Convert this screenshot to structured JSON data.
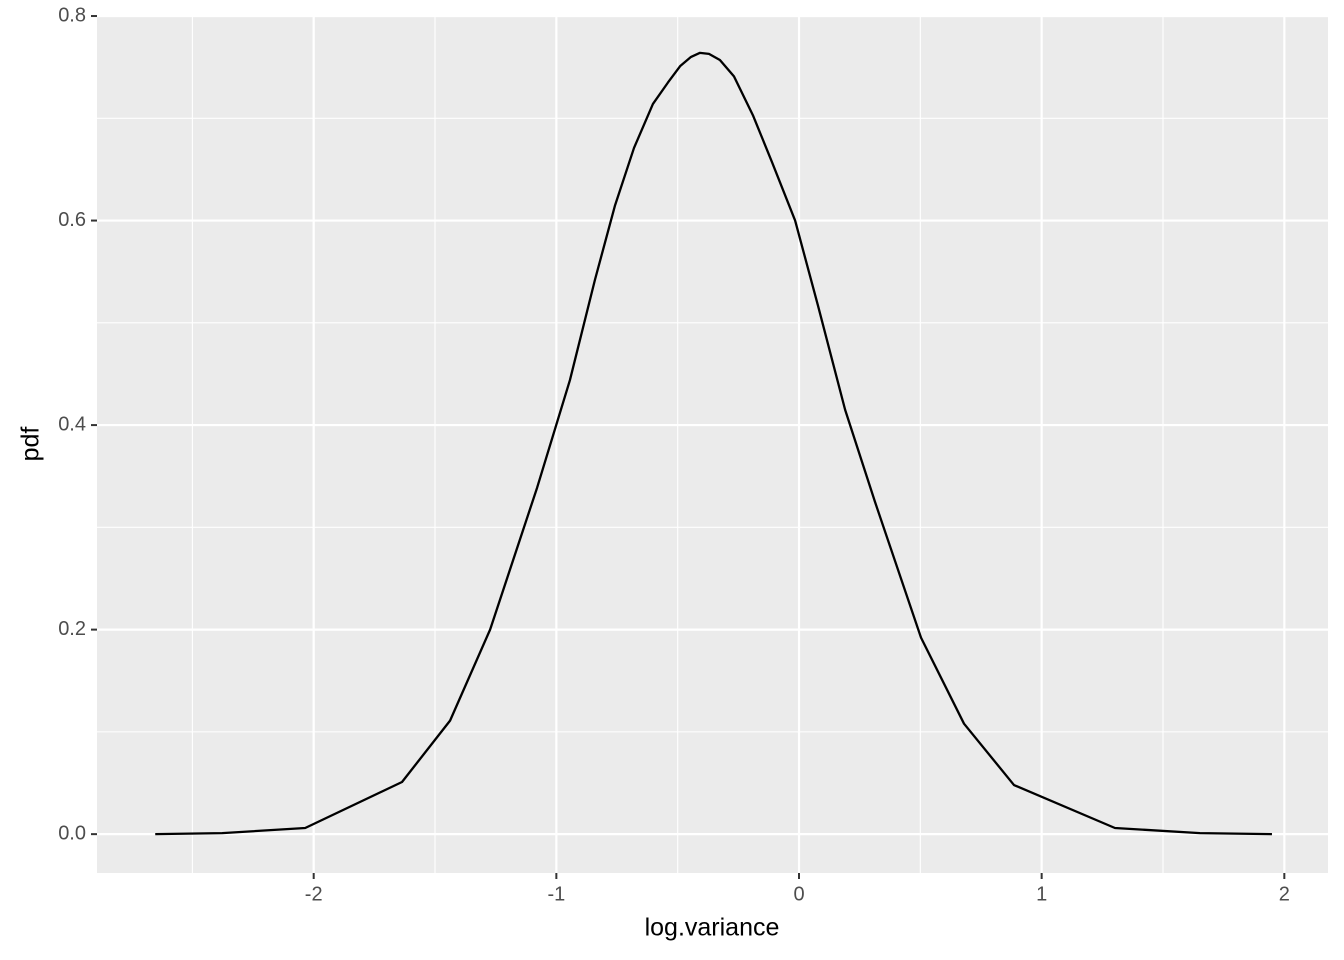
{
  "chart_data": {
    "type": "line",
    "x_label": "log.variance",
    "y_label": "pdf",
    "x": [
      -2.653,
      -2.377,
      -2.035,
      -1.636,
      -1.438,
      -1.273,
      -1.079,
      -0.944,
      -0.841,
      -0.758,
      -0.68,
      -0.602,
      -0.54,
      -0.49,
      -0.445,
      -0.408,
      -0.371,
      -0.326,
      -0.268,
      -0.19,
      -0.111,
      -0.016,
      0.078,
      0.19,
      0.313,
      0.503,
      0.68,
      0.886,
      1.302,
      1.652,
      1.949
    ],
    "series": [
      {
        "color": "#000000",
        "values": [
          0,
          0.001,
          0.006,
          0.051,
          0.111,
          0.2,
          0.339,
          0.444,
          0.542,
          0.615,
          0.671,
          0.714,
          0.735,
          0.751,
          0.76,
          0.764,
          0.763,
          0.757,
          0.741,
          0.703,
          0.657,
          0.6,
          0.517,
          0.415,
          0.325,
          0.192,
          0.108,
          0.048,
          0.006,
          0.001,
          0
        ]
      }
    ],
    "xlim": [
      -2.893,
      2.18
    ],
    "ylim": [
      -0.038,
      0.801
    ],
    "xticks": [
      -2,
      -1,
      0,
      1,
      2
    ],
    "yticks": [
      {
        "value": 0,
        "label": "0.0"
      },
      {
        "value": 0.2,
        "label": "0.2"
      },
      {
        "value": 0.4,
        "label": "0.4"
      },
      {
        "value": 0.6,
        "label": "0.6"
      },
      {
        "value": 0.8,
        "label": "0.8"
      }
    ],
    "x_minor_grid": [
      -2.5,
      -1.5,
      -0.5,
      0.5,
      1.5
    ],
    "y_minor_grid": [
      0.1,
      0.3,
      0.5,
      0.7
    ],
    "grid": true
  }
}
